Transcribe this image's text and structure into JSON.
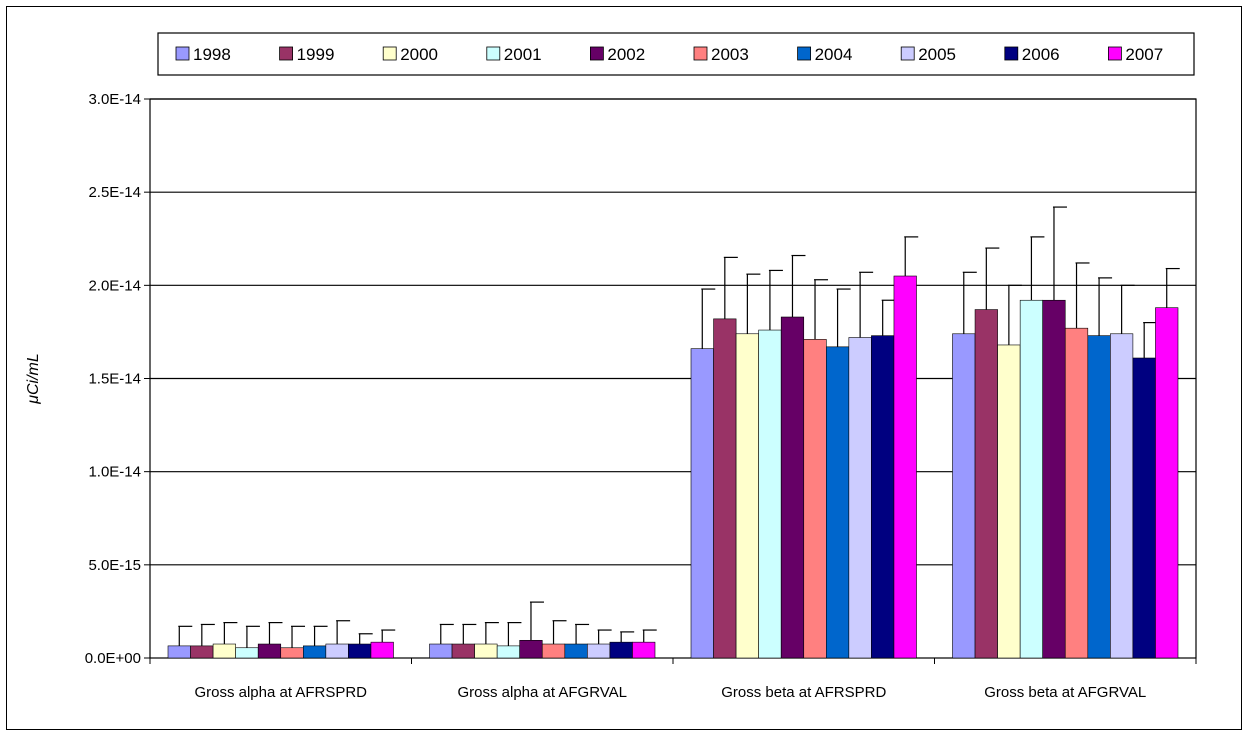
{
  "chart_data": {
    "type": "bar",
    "title": "",
    "ylabel": "μCi/mL",
    "xlabel": "",
    "ylim": [
      0,
      3e-14
    ],
    "y_ticks": [
      0,
      5e-15,
      1e-14,
      1.5e-14,
      2e-14,
      2.5e-14,
      3e-14
    ],
    "y_tick_labels": [
      "0.0E+00",
      "5.0E-15",
      "1.0E-14",
      "1.5E-14",
      "2.0E-14",
      "2.5E-14",
      "3.0E-14"
    ],
    "grid": "horizontal",
    "legend_position": "top",
    "categories": [
      "Gross alpha at AFRSPRD",
      "Gross alpha at AFGRVAL",
      "Gross beta at AFRSPRD",
      "Gross beta at AFGRVAL"
    ],
    "series": [
      {
        "name": "1998",
        "color": "#9999FF",
        "values": [
          6.5e-16,
          7.5e-16,
          1.66e-14,
          1.74e-14
        ],
        "errors": [
          1.05e-15,
          1.05e-15,
          3.2e-15,
          3.3e-15
        ]
      },
      {
        "name": "1999",
        "color": "#993366",
        "values": [
          6.5e-16,
          7.5e-16,
          1.82e-14,
          1.87e-14
        ],
        "errors": [
          1.15e-15,
          1.05e-15,
          3.3e-15,
          3.3e-15
        ]
      },
      {
        "name": "2000",
        "color": "#FFFFCC",
        "values": [
          7.5e-16,
          7.5e-16,
          1.74e-14,
          1.68e-14
        ],
        "errors": [
          1.15e-15,
          1.15e-15,
          3.2e-15,
          3.2e-15
        ]
      },
      {
        "name": "2001",
        "color": "#CCFFFF",
        "values": [
          5.5e-16,
          6.5e-16,
          1.76e-14,
          1.92e-14
        ],
        "errors": [
          1.15e-15,
          1.25e-15,
          3.2e-15,
          3.4e-15
        ]
      },
      {
        "name": "2002",
        "color": "#660066",
        "values": [
          7.5e-16,
          9.5e-16,
          1.83e-14,
          1.92e-14
        ],
        "errors": [
          1.15e-15,
          2.05e-15,
          3.3e-15,
          5e-15
        ]
      },
      {
        "name": "2003",
        "color": "#FF8080",
        "values": [
          5.5e-16,
          7.5e-16,
          1.71e-14,
          1.77e-14
        ],
        "errors": [
          1.15e-15,
          1.25e-15,
          3.2e-15,
          3.5e-15
        ]
      },
      {
        "name": "2004",
        "color": "#0066CC",
        "values": [
          6.5e-16,
          7.5e-16,
          1.67e-14,
          1.73e-14
        ],
        "errors": [
          1.05e-15,
          1.05e-15,
          3.1e-15,
          3.1e-15
        ]
      },
      {
        "name": "2005",
        "color": "#CCCCFF",
        "values": [
          7.5e-16,
          7.5e-16,
          1.72e-14,
          1.74e-14
        ],
        "errors": [
          1.25e-15,
          7.5e-16,
          3.5e-15,
          2.6e-15
        ]
      },
      {
        "name": "2006",
        "color": "#000080",
        "values": [
          7.5e-16,
          8.5e-16,
          1.73e-14,
          1.61e-14
        ],
        "errors": [
          5.5e-16,
          5.5e-16,
          1.9e-15,
          1.9e-15
        ]
      },
      {
        "name": "2007",
        "color": "#FF00FF",
        "values": [
          8.5e-16,
          8.5e-16,
          2.05e-14,
          1.88e-14
        ],
        "errors": [
          6.5e-16,
          6.5e-16,
          2.1e-15,
          2.1e-15
        ]
      }
    ]
  }
}
